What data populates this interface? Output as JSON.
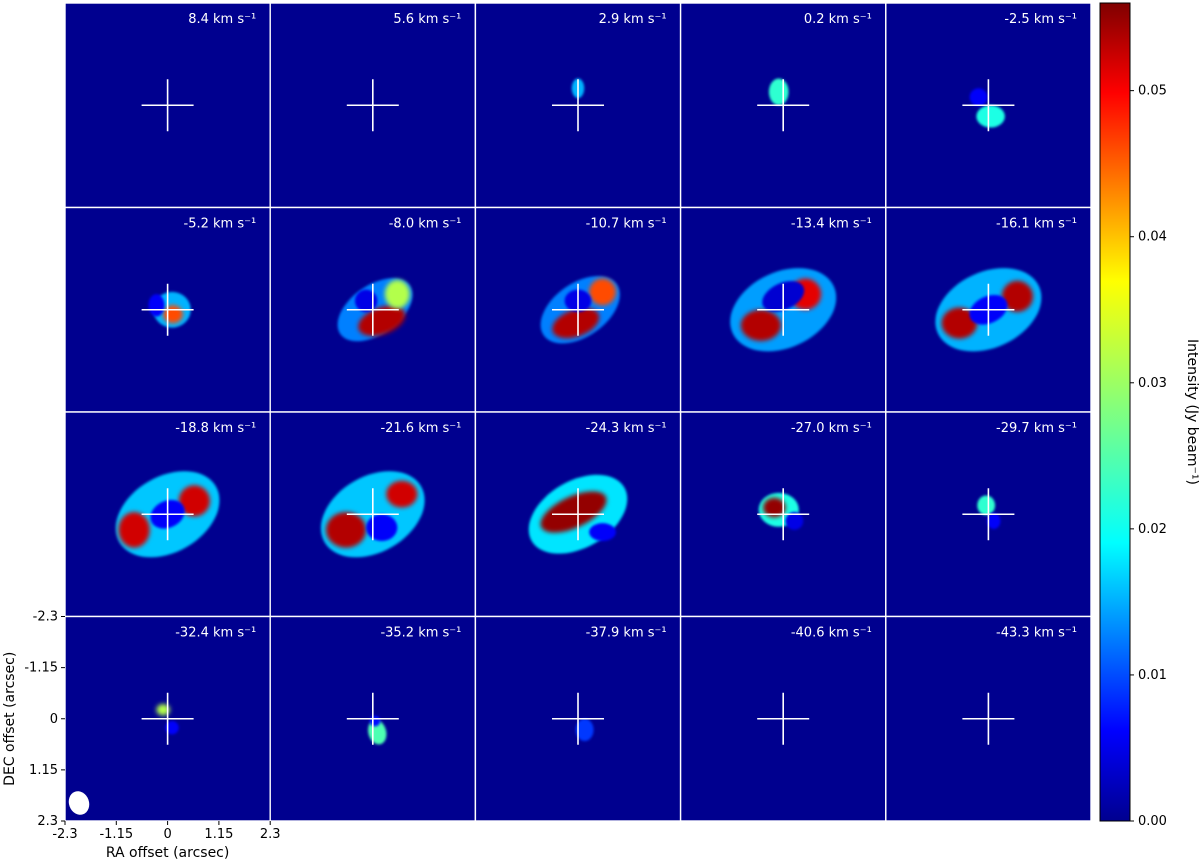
{
  "chart_data": {
    "type": "heatmap",
    "title": "",
    "grid": {
      "rows": 4,
      "cols": 5
    },
    "channel_unit": "km s⁻¹",
    "channels": [
      "8.4",
      "5.6",
      "2.9",
      "0.2",
      "-2.5",
      "-5.2",
      "-8.0",
      "-10.7",
      "-13.4",
      "-16.1",
      "-18.8",
      "-21.6",
      "-24.3",
      "-27.0",
      "-29.7",
      "-32.4",
      "-35.2",
      "-37.9",
      "-40.6",
      "-43.3"
    ],
    "xlabel": "RA offset (arcsec)",
    "ylabel": "DEC offset (arcsec)",
    "x_ticks": [
      "-2.3",
      "-1.15",
      "0",
      "1.15",
      "2.3"
    ],
    "y_ticks": [
      "-2.3",
      "-1.15",
      "0",
      "1.15",
      "2.3"
    ],
    "xlim": [
      -2.3,
      2.3
    ],
    "ylim": [
      -2.3,
      2.3
    ],
    "y_axis_inverted": true,
    "colormap": "jet",
    "background_color": "#00008f",
    "marker": "white cross at (0, 0)",
    "beam_shown": true,
    "colorbar": {
      "label": "Intensity (Jy beam⁻¹)",
      "ticks": [
        "0.00",
        "0.01",
        "0.02",
        "0.03",
        "0.04",
        "0.05"
      ],
      "range": [
        0,
        0.056
      ]
    },
    "peak_intensity_jy_per_beam": [
      0.0,
      0.0,
      0.016,
      0.022,
      0.024,
      0.045,
      0.055,
      0.055,
      0.055,
      0.053,
      0.052,
      0.054,
      0.056,
      0.055,
      0.024,
      0.03,
      0.026,
      0.01,
      0.0,
      0.0
    ]
  }
}
